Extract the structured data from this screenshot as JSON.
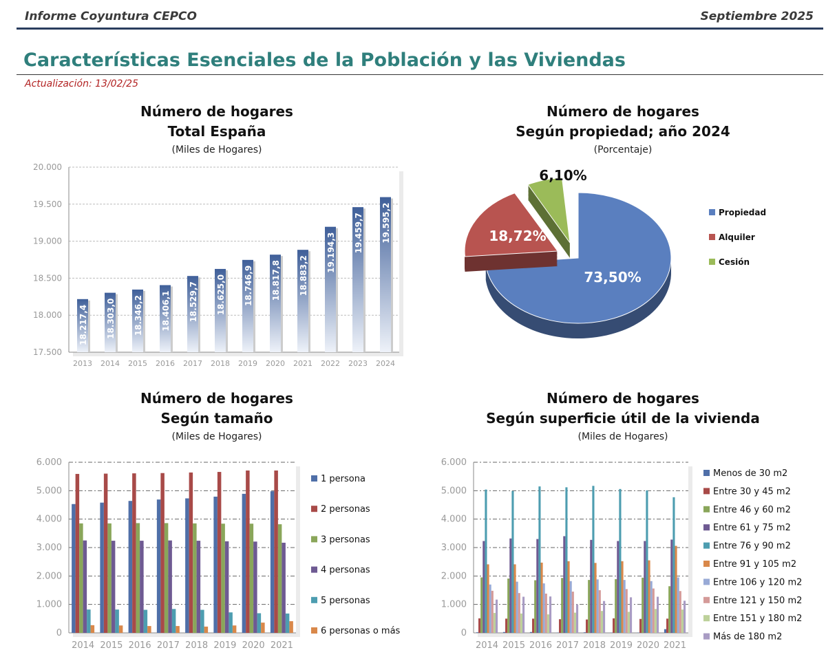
{
  "header": {
    "left": "Informe Coyuntura CEPCO",
    "right": "Septiembre 2025"
  },
  "page_title": "Características Esenciales de la Población y las Viviendas",
  "update": "Actualización: 13/02/25",
  "chart_data": [
    {
      "type": "bar",
      "title": "Número de hogares",
      "subtitle": "Total España",
      "unit": "(Miles de Hogares)",
      "categories": [
        "2013",
        "2014",
        "2015",
        "2016",
        "2017",
        "2018",
        "2019",
        "2020",
        "2021",
        "2022",
        "2023",
        "2024"
      ],
      "values": [
        18217.4,
        18303.0,
        18346.2,
        18406.1,
        18529.7,
        18625.0,
        18746.9,
        18817.8,
        18883.2,
        19194.3,
        19459.7,
        19595.2
      ],
      "labels": [
        "18.217,4",
        "18.303,0",
        "18.346,2",
        "18.406,1",
        "18.529,7",
        "18.625,0",
        "18.746,9",
        "18.817,8",
        "18.883,2",
        "19.194,3",
        "19.459,7",
        "19.595,2"
      ],
      "ylim": [
        17500,
        20000
      ],
      "yticks": [
        17500,
        18000,
        18500,
        19000,
        19500,
        20000
      ],
      "ytick_labels": [
        "17.500",
        "18.000",
        "18.500",
        "19.000",
        "19.500",
        "20.000"
      ],
      "color": "#4a6fa5",
      "grid": true
    },
    {
      "type": "pie",
      "title": "Número de hogares",
      "subtitle": "Según propiedad; año 2024",
      "unit": "(Porcentaje)",
      "slices": [
        {
          "name": "Propiedad",
          "value": 73.5,
          "label": "73,50%",
          "color": "#5a7fbf"
        },
        {
          "name": "Alquiler",
          "value": 18.72,
          "label": "18,72%",
          "color": "#b85450"
        },
        {
          "name": "Cesión",
          "value": 6.1,
          "label": "6,10%",
          "color": "#9bbb59"
        }
      ],
      "legend": "right"
    },
    {
      "type": "bar",
      "title": "Número de hogares",
      "subtitle": "Según tamaño",
      "unit": "(Miles de Hogares)",
      "categories": [
        "2014",
        "2015",
        "2016",
        "2017",
        "2018",
        "2019",
        "2020",
        "2021"
      ],
      "ylim": [
        0,
        6000
      ],
      "yticks": [
        0,
        1000,
        2000,
        3000,
        4000,
        5000,
        6000
      ],
      "ytick_labels": [
        "0",
        "1.000",
        "2.000",
        "3.000",
        "4.000",
        "5.000",
        "6.000"
      ],
      "legend": "right",
      "grid": true,
      "series": [
        {
          "name": "1 persona",
          "color": "#4f6fa8",
          "values": [
            4530,
            4580,
            4640,
            4690,
            4730,
            4790,
            4890,
            4980
          ]
        },
        {
          "name": "2 personas",
          "color": "#a84a48",
          "values": [
            5590,
            5600,
            5610,
            5620,
            5640,
            5660,
            5710,
            5710
          ]
        },
        {
          "name": "3 personas",
          "color": "#8aa65a",
          "values": [
            3850,
            3850,
            3860,
            3860,
            3850,
            3840,
            3840,
            3820
          ]
        },
        {
          "name": "4 personas",
          "color": "#6e5a92",
          "values": [
            3250,
            3240,
            3240,
            3250,
            3240,
            3220,
            3210,
            3170
          ]
        },
        {
          "name": "5 personas",
          "color": "#4d9db0",
          "values": [
            820,
            820,
            810,
            840,
            810,
            720,
            690,
            680
          ]
        },
        {
          "name": "6 personas o más",
          "color": "#d9884a",
          "values": [
            270,
            260,
            240,
            240,
            220,
            260,
            360,
            410
          ]
        }
      ]
    },
    {
      "type": "bar",
      "title": "Número de hogares",
      "subtitle": "Según superficie útil de la vivienda",
      "unit": "(Miles de Hogares)",
      "categories": [
        "2014",
        "2015",
        "2016",
        "2017",
        "2018",
        "2019",
        "2020",
        "2021"
      ],
      "ylim": [
        0,
        6000
      ],
      "yticks": [
        0,
        1000,
        2000,
        3000,
        4000,
        5000,
        6000
      ],
      "ytick_labels": [
        "0",
        "1.000",
        "2.000",
        "3.000",
        "4.000",
        "5.000",
        "6.000"
      ],
      "legend": "right",
      "grid": true,
      "series": [
        {
          "name": "Menos de 30 m2",
          "color": "#4f6fa8",
          "values": [
            20,
            30,
            30,
            10,
            20,
            10,
            10,
            130
          ]
        },
        {
          "name": "Entre 30 y 45 m2",
          "color": "#a84a48",
          "values": [
            510,
            500,
            500,
            480,
            470,
            510,
            490,
            500
          ]
        },
        {
          "name": "Entre 46 y 60 m2",
          "color": "#8aa65a",
          "values": [
            1950,
            1910,
            1850,
            1930,
            1860,
            1890,
            1940,
            1640
          ]
        },
        {
          "name": "Entre 61 y 75 m2",
          "color": "#6e5a92",
          "values": [
            3230,
            3320,
            3300,
            3400,
            3270,
            3230,
            3230,
            3280
          ]
        },
        {
          "name": "Entre 76 y 90 m2",
          "color": "#4d9db0",
          "values": [
            5040,
            4990,
            5150,
            5120,
            5170,
            5060,
            5010,
            4770
          ]
        },
        {
          "name": "Entre 91 y 105 m2",
          "color": "#d9884a",
          "values": [
            2410,
            2410,
            2470,
            2520,
            2460,
            2520,
            2550,
            3060
          ]
        },
        {
          "name": "Entre 106 y 120 m2",
          "color": "#98aad6",
          "values": [
            1700,
            1800,
            1740,
            1820,
            1880,
            1860,
            1820,
            1950
          ]
        },
        {
          "name": "Entre 121 y 150 m2",
          "color": "#d49a98",
          "values": [
            1480,
            1400,
            1380,
            1450,
            1500,
            1540,
            1560,
            1470
          ]
        },
        {
          "name": "Entre 151 y 180 m2",
          "color": "#bdd19a",
          "values": [
            700,
            680,
            650,
            710,
            770,
            740,
            840,
            820
          ]
        },
        {
          "name": "Más de 180 m2",
          "color": "#a99cc4",
          "values": [
            1170,
            1270,
            1280,
            1000,
            1120,
            1250,
            1270,
            1130
          ]
        }
      ]
    }
  ]
}
